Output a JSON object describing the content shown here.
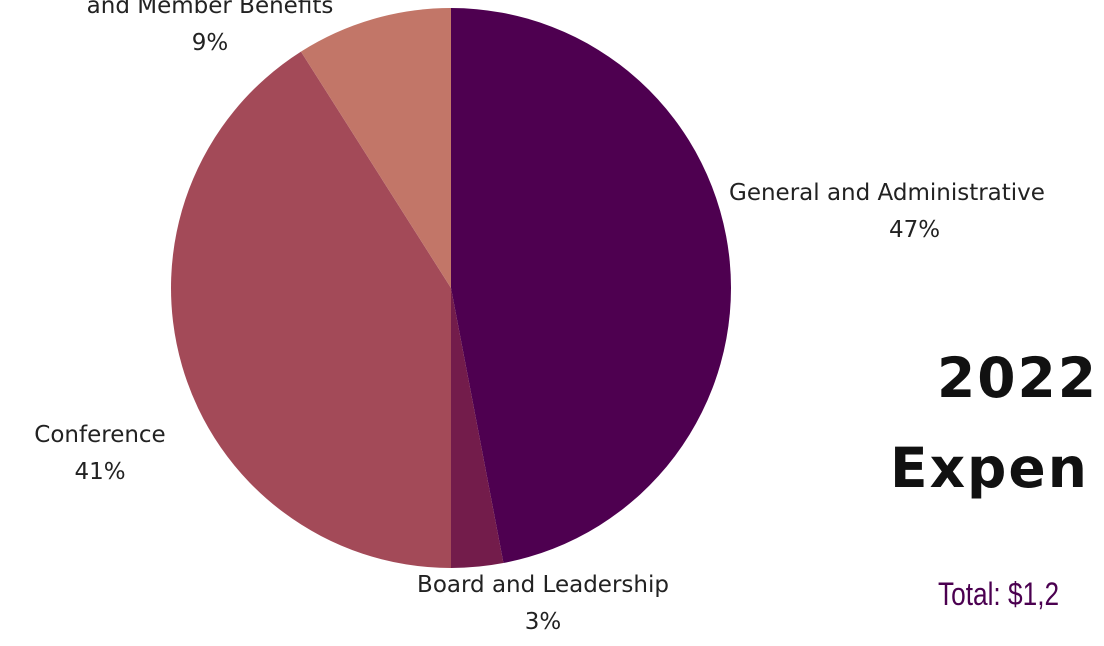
{
  "chart_data": {
    "type": "pie",
    "title": "2022 Expen",
    "title_lines": [
      "2022",
      "Expen"
    ],
    "subtitle": "Total: $1,2",
    "slices": [
      {
        "name": "General and Administrative",
        "value": 47,
        "label": "47%",
        "color": "#4e0050"
      },
      {
        "name": "Board and Leadership",
        "value": 3,
        "label": "3%",
        "color": "#731c4b"
      },
      {
        "name": "Conference",
        "value": 41,
        "label": "41%",
        "color": "#a34a58"
      },
      {
        "name": "and Member Benefits",
        "value": 9,
        "label": "9%",
        "color": "#c27668"
      }
    ],
    "legend": "none",
    "start_angle": "12 o'clock, clockwise"
  }
}
